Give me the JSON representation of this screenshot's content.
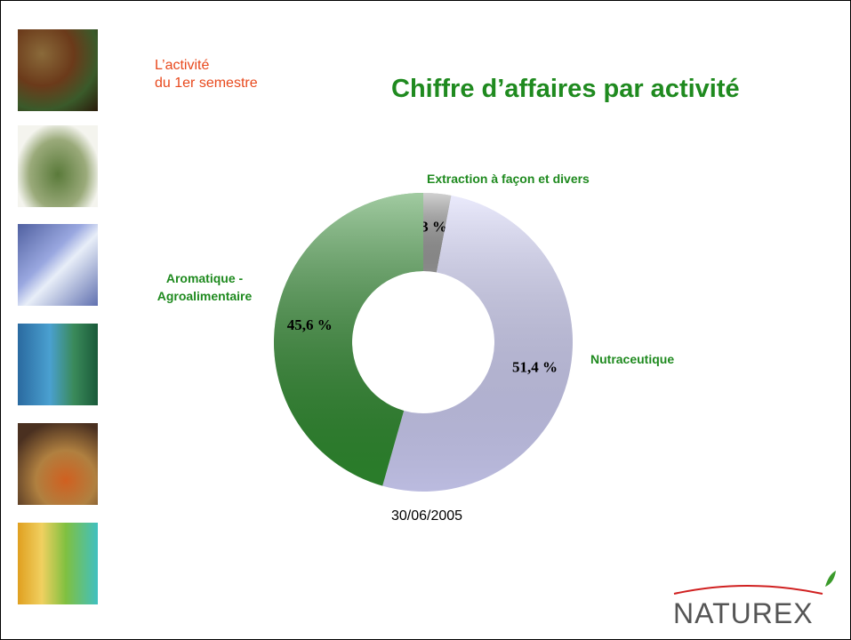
{
  "chart_data": {
    "type": "donut",
    "title": "Chiffre d’affaires par activité",
    "subtitle": [
      "L’activité",
      "du 1er semestre"
    ],
    "caption": "30/06/2005",
    "logo": "NATUREX",
    "categories": [
      "Extraction à façon et divers",
      "Nutraceutique",
      "Aromatique - Agroalimentaire"
    ],
    "values": [
      3,
      51.4,
      45.6
    ],
    "value_labels": [
      "3 %",
      "51,4 %",
      "45,6 %"
    ],
    "colors": [
      "#9a9a9a",
      "#d0d0f8",
      "#2e8b2e"
    ]
  }
}
